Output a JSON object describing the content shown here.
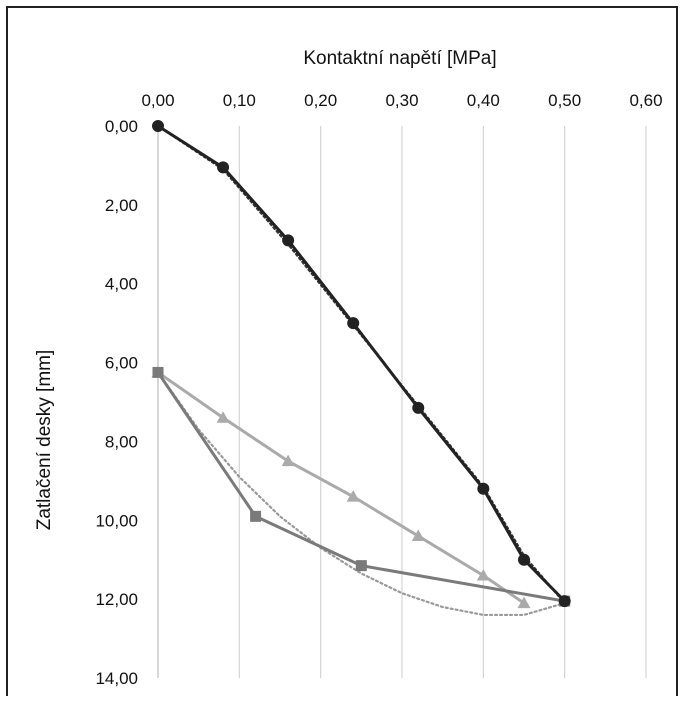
{
  "chart_data": {
    "type": "line",
    "title": "",
    "xlabel": "Kontaktní napětí [MPa]",
    "ylabel": "Zatlačení desky [mm]",
    "xlim": [
      0,
      0.6
    ],
    "ylim": [
      0,
      14
    ],
    "y_inverted": true,
    "x_axis_position": "top",
    "grid": "vertical",
    "x_ticks": [
      "0,00",
      "0,10",
      "0,20",
      "0,30",
      "0,40",
      "0,50",
      "0,60"
    ],
    "y_ticks": [
      "0,00",
      "2,00",
      "4,00",
      "6,00",
      "8,00",
      "10,00",
      "12,00",
      "14,00"
    ],
    "series": [
      {
        "style": "solid",
        "marker": "circle",
        "color": "#222222",
        "x": [
          0.0,
          0.08,
          0.16,
          0.24,
          0.32,
          0.4,
          0.45,
          0.5
        ],
        "y": [
          0.0,
          1.05,
          2.9,
          5.0,
          7.15,
          9.2,
          11.0,
          12.05
        ]
      },
      {
        "style": "dotted",
        "marker": "none",
        "color": "#333333",
        "x": [
          0.0,
          0.08,
          0.16,
          0.24,
          0.32,
          0.4,
          0.45,
          0.5
        ],
        "y": [
          0.0,
          1.1,
          3.0,
          5.05,
          7.1,
          9.15,
          10.9,
          12.1
        ]
      },
      {
        "style": "solid",
        "marker": "square",
        "color": "#7a7a7a",
        "x": [
          0.0,
          0.12,
          0.25,
          0.5
        ],
        "y": [
          6.25,
          9.9,
          11.15,
          12.05
        ]
      },
      {
        "style": "solid",
        "marker": "triangle",
        "color": "#aaaaaa",
        "x": [
          0.0,
          0.08,
          0.16,
          0.24,
          0.32,
          0.4,
          0.45
        ],
        "y": [
          6.25,
          7.4,
          8.5,
          9.4,
          10.4,
          11.4,
          12.1
        ]
      },
      {
        "style": "dotted",
        "marker": "none",
        "color": "#999999",
        "x": [
          0.0,
          0.05,
          0.1,
          0.15,
          0.2,
          0.25,
          0.3,
          0.35,
          0.4,
          0.45,
          0.5
        ],
        "y": [
          6.25,
          7.7,
          8.9,
          9.9,
          10.7,
          11.35,
          11.85,
          12.2,
          12.4,
          12.4,
          12.1
        ]
      }
    ]
  }
}
